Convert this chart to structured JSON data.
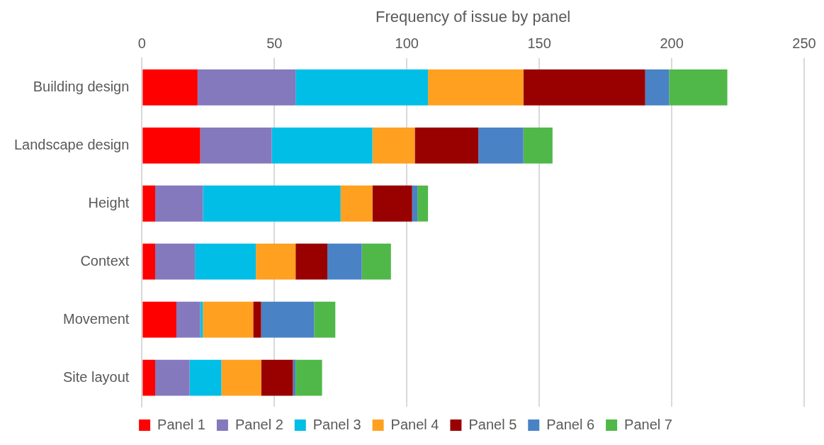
{
  "chart_data": {
    "type": "bar",
    "orientation": "horizontal",
    "stacked": true,
    "title": "Frequency of issue by panel",
    "categories": [
      "Building design",
      "Landscape design",
      "Height",
      "Context",
      "Movement",
      "Site layout"
    ],
    "series": [
      {
        "name": "Panel 1",
        "color": "#ff0000",
        "values": [
          21,
          22,
          5,
          5,
          13,
          5
        ]
      },
      {
        "name": "Panel 2",
        "color": "#8479bd",
        "values": [
          37,
          27,
          18,
          15,
          9,
          13
        ]
      },
      {
        "name": "Panel 3",
        "color": "#00bee6",
        "values": [
          50,
          38,
          52,
          23,
          1,
          12
        ]
      },
      {
        "name": "Panel 4",
        "color": "#ffa020",
        "values": [
          36,
          16,
          12,
          15,
          19,
          15
        ]
      },
      {
        "name": "Panel 5",
        "color": "#990000",
        "values": [
          46,
          24,
          15,
          12,
          3,
          12
        ]
      },
      {
        "name": "Panel 6",
        "color": "#4a82c6",
        "values": [
          9,
          17,
          2,
          13,
          20,
          1
        ]
      },
      {
        "name": "Panel 7",
        "color": "#50b848",
        "values": [
          22,
          11,
          4,
          11,
          8,
          10
        ]
      }
    ],
    "xlim": [
      0,
      250
    ],
    "xticks": [
      0,
      50,
      100,
      150,
      200,
      250
    ],
    "grid": "x",
    "legend": "bottom"
  }
}
